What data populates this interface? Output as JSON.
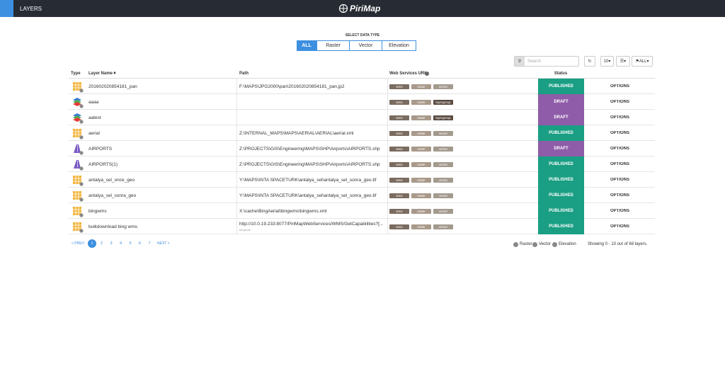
{
  "header": {
    "title": "LAYERS",
    "logo": "PiriMap"
  },
  "filter": {
    "label": "SELECT DATA TYPE",
    "options": [
      "ALL",
      "Raster",
      "Vector",
      "Elevation"
    ],
    "selected": 0
  },
  "toolbar": {
    "search_placeholder": "Search",
    "page_size": "10",
    "tag_filter": "ALL"
  },
  "table": {
    "columns": [
      "Type",
      "Layer Name",
      "Path",
      "Web Services URL",
      "Status"
    ],
    "rows": [
      {
        "type": "raster",
        "name": "201602020854181_pan",
        "path": "F:\\MAPS\\JPG2000\\pan\\201602020854181_pan.jp2",
        "services": [
          "wms",
          "raster",
          "vector"
        ],
        "status": "PUBLISHED",
        "action": "OPTIONS"
      },
      {
        "type": "group",
        "name": "aaaa",
        "path": "",
        "services": [
          "wms",
          "raster",
          "layergroup"
        ],
        "status": "DRAFT",
        "action": "OPTIONS"
      },
      {
        "type": "group",
        "name": "aatest",
        "path": "",
        "services": [
          "wms",
          "raster",
          "layergroup"
        ],
        "status": "DRAFT",
        "action": "OPTIONS"
      },
      {
        "type": "raster",
        "name": "aerial",
        "path": "Z:\\INTERNAL_MAPS\\MAPS\\AERIAL\\AERIAL\\aerial.xml",
        "services": [
          "wms",
          "raster",
          "vector"
        ],
        "status": "PUBLISHED",
        "action": "OPTIONS"
      },
      {
        "type": "vector",
        "name": "AIRPORTS",
        "path": "Z:\\PROJECTS\\GIS\\Engineering\\MAPS\\SHP\\Airports\\AIRPORTS.shp",
        "services": [
          "wms",
          "raster",
          "vector"
        ],
        "status": "DRAFT",
        "action": "OPTIONS"
      },
      {
        "type": "vector",
        "name": "AIRPORTS(1)",
        "path": "Z:\\PROJECTS\\GIS\\Engineering\\MAPS\\SHP\\Airports\\AIRPORTS.shp",
        "services": [
          "wms",
          "raster",
          "vector"
        ],
        "status": "PUBLISHED",
        "action": "OPTIONS"
      },
      {
        "type": "raster",
        "name": "antalya_sel_once_geo",
        "path": "Y:\\MAPS\\INTA SPACETURK\\antalya_sel\\antalya_sel_sonra_geo.tif",
        "services": [
          "wms",
          "raster",
          "vector"
        ],
        "status": "PUBLISHED",
        "action": "OPTIONS"
      },
      {
        "type": "raster",
        "name": "antalya_sel_sonra_geo",
        "path": "Y:\\MAPS\\INTA SPACETURK\\antalya_sel\\antalya_sel_sonra_geo.tif",
        "services": [
          "wms",
          "raster",
          "vector"
        ],
        "status": "PUBLISHED",
        "action": "OPTIONS"
      },
      {
        "type": "raster",
        "name": "bingwms",
        "path": "X:\\cache\\BingAerial\\bingwms\\bingwms.xml",
        "services": [
          "wms",
          "raster",
          "vector"
        ],
        "status": "PUBLISHED",
        "action": "OPTIONS"
      },
      {
        "type": "raster",
        "name": "bulkdownload bing wms",
        "path": "http://10.0.19.233:8077/PiriMapWebServices/WMS/GetCapabilities?[...",
        "subpath": "bingwms",
        "services": [
          "wms",
          "raster",
          "vector"
        ],
        "status": "PUBLISHED",
        "action": "OPTIONS"
      }
    ]
  },
  "pagination": {
    "prev": "< PREV",
    "pages": [
      "1",
      "2",
      "3",
      "4",
      "5",
      "6",
      "7"
    ],
    "current": 0,
    "next": "NEXT >"
  },
  "legend": [
    "Raster",
    "Vector",
    "Elevation"
  ],
  "summary": "Showing 0 - 10 out of 68 layers."
}
